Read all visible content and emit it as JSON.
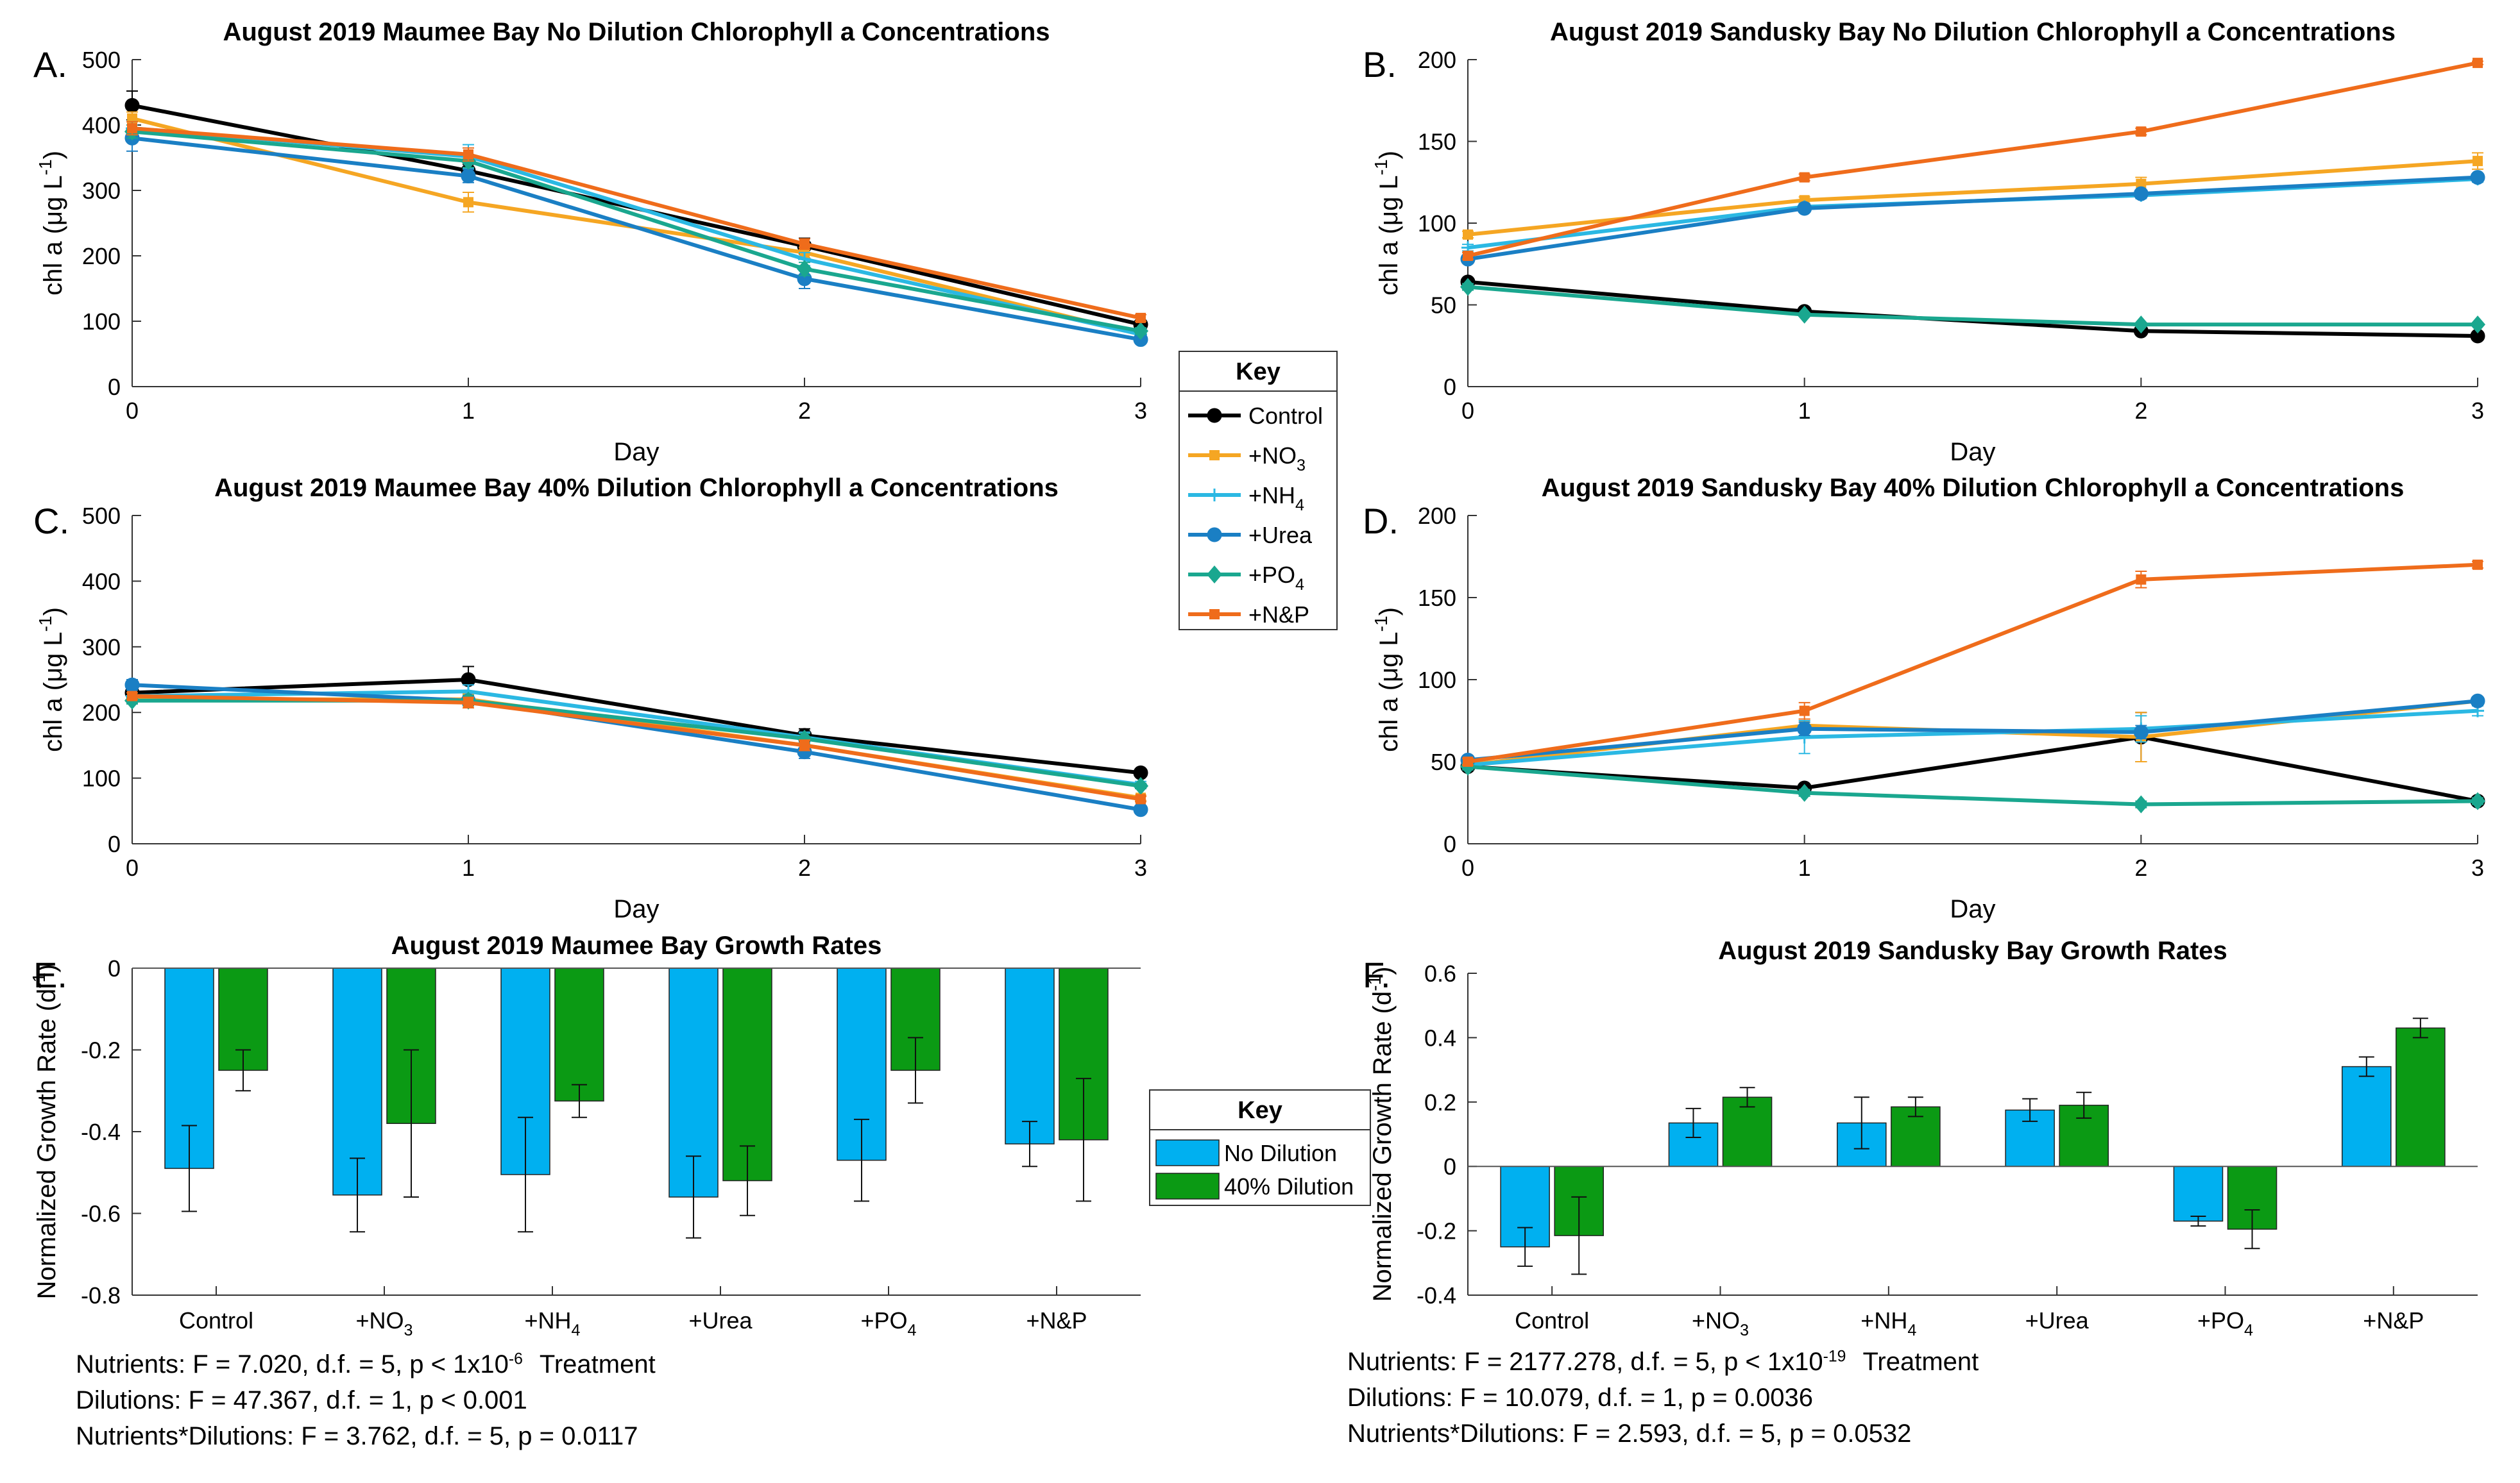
{
  "colors": {
    "Control": "#000000",
    "+NO3": "#f5a623",
    "+NH4": "#2bb8e3",
    "+Urea": "#1a7fc4",
    "+PO4": "#1aa78f",
    "+N&P": "#ef6c1b",
    "no_dilution": "#00b0f0",
    "dilution_40": "#0b9a14"
  },
  "line_key": {
    "title": "Key",
    "entries": [
      "Control",
      "+NO3",
      "+NH4",
      "+Urea",
      "+PO4",
      "+N&P"
    ],
    "markers": [
      "circle",
      "square",
      "plus",
      "circle",
      "diamond",
      "square"
    ]
  },
  "bar_key": {
    "title": "Key",
    "entries": [
      "No Dilution",
      "40% Dilution"
    ]
  },
  "chart_data": [
    {
      "type": "line",
      "panel": "A.",
      "title": "August 2019 Maumee Bay No Dilution Chlorophyll a Concentrations",
      "xlabel": "Day",
      "ylabel": "chl a (μg L⁻¹)",
      "xlim": [
        0,
        3
      ],
      "ylim": [
        0,
        500
      ],
      "xticks": [
        "0",
        "1",
        "2",
        "3"
      ],
      "yticks": [
        "0",
        "100",
        "200",
        "300",
        "400",
        "500"
      ],
      "x": [
        0,
        1,
        2,
        3
      ],
      "series": [
        {
          "name": "Control",
          "values": [
            430,
            330,
            215,
            95
          ],
          "errors": [
            22,
            10,
            12,
            6
          ]
        },
        {
          "name": "+NO3",
          "values": [
            410,
            282,
            205,
            80
          ],
          "errors": [
            10,
            15,
            8,
            5
          ]
        },
        {
          "name": "+NH4",
          "values": [
            395,
            352,
            195,
            80
          ],
          "errors": [
            10,
            18,
            10,
            5
          ]
        },
        {
          "name": "+Urea",
          "values": [
            380,
            322,
            165,
            72
          ],
          "errors": [
            20,
            10,
            15,
            5
          ]
        },
        {
          "name": "+PO4",
          "values": [
            390,
            345,
            180,
            85
          ],
          "errors": [
            10,
            10,
            10,
            5
          ]
        },
        {
          "name": "+N&P",
          "values": [
            395,
            355,
            218,
            105
          ],
          "errors": [
            10,
            10,
            8,
            5
          ]
        }
      ]
    },
    {
      "type": "line",
      "panel": "B.",
      "title": "August 2019 Sandusky Bay No Dilution Chlorophyll a Concentrations",
      "xlabel": "Day",
      "ylabel": "chl a (μg L⁻¹)",
      "xlim": [
        0,
        3
      ],
      "ylim": [
        0,
        200
      ],
      "xticks": [
        "0",
        "1",
        "2",
        "3"
      ],
      "yticks": [
        "0",
        "50",
        "100",
        "150",
        "200"
      ],
      "x": [
        0,
        1,
        2,
        3
      ],
      "series": [
        {
          "name": "Control",
          "values": [
            64,
            46,
            34,
            31
          ],
          "errors": [
            2,
            1,
            1,
            1
          ]
        },
        {
          "name": "+NO3",
          "values": [
            93,
            114,
            124,
            138
          ],
          "errors": [
            2,
            2,
            4,
            5
          ]
        },
        {
          "name": "+NH4",
          "values": [
            85,
            110,
            117,
            127
          ],
          "errors": [
            2,
            2,
            2,
            2
          ]
        },
        {
          "name": "+Urea",
          "values": [
            78,
            109,
            118,
            128
          ],
          "errors": [
            2,
            2,
            2,
            2
          ]
        },
        {
          "name": "+PO4",
          "values": [
            61,
            44,
            38,
            38
          ],
          "errors": [
            2,
            1,
            1,
            1
          ]
        },
        {
          "name": "+N&P",
          "values": [
            80,
            128,
            156,
            198
          ],
          "errors": [
            2,
            2,
            2,
            1
          ]
        }
      ]
    },
    {
      "type": "line",
      "panel": "C.",
      "title": "August 2019 Maumee Bay 40% Dilution Chlorophyll a Concentrations",
      "xlabel": "Day",
      "ylabel": "chl a (μg L⁻¹)",
      "xlim": [
        0,
        3
      ],
      "ylim": [
        0,
        500
      ],
      "xticks": [
        "0",
        "1",
        "2",
        "3"
      ],
      "yticks": [
        "0",
        "100",
        "200",
        "300",
        "400",
        "500"
      ],
      "x": [
        0,
        1,
        2,
        3
      ],
      "series": [
        {
          "name": "Control",
          "values": [
            230,
            250,
            165,
            108
          ],
          "errors": [
            8,
            20,
            10,
            5
          ]
        },
        {
          "name": "+NO3",
          "values": [
            220,
            220,
            150,
            70
          ],
          "errors": [
            5,
            8,
            8,
            4
          ]
        },
        {
          "name": "+NH4",
          "values": [
            225,
            232,
            162,
            90
          ],
          "errors": [
            5,
            10,
            8,
            5
          ]
        },
        {
          "name": "+Urea",
          "values": [
            242,
            218,
            140,
            52
          ],
          "errors": [
            8,
            8,
            10,
            4
          ]
        },
        {
          "name": "+PO4",
          "values": [
            218,
            218,
            160,
            88
          ],
          "errors": [
            5,
            8,
            8,
            4
          ]
        },
        {
          "name": "+N&P",
          "values": [
            225,
            215,
            150,
            68
          ],
          "errors": [
            5,
            8,
            8,
            4
          ]
        }
      ]
    },
    {
      "type": "line",
      "panel": "D.",
      "title": "August 2019 Sandusky Bay 40% Dilution Chlorophyll a Concentrations",
      "xlabel": "Day",
      "ylabel": "chl a (μg L⁻¹)",
      "xlim": [
        0,
        3
      ],
      "ylim": [
        0,
        200
      ],
      "xticks": [
        "0",
        "1",
        "2",
        "3"
      ],
      "yticks": [
        "0",
        "50",
        "100",
        "150",
        "200"
      ],
      "x": [
        0,
        1,
        2,
        3
      ],
      "series": [
        {
          "name": "Control",
          "values": [
            47,
            34,
            65,
            26
          ],
          "errors": [
            2,
            2,
            15,
            2
          ]
        },
        {
          "name": "+NO3",
          "values": [
            48,
            72,
            65,
            87
          ],
          "errors": [
            2,
            4,
            15,
            2
          ]
        },
        {
          "name": "+NH4",
          "values": [
            48,
            65,
            70,
            81
          ],
          "errors": [
            2,
            10,
            8,
            3
          ]
        },
        {
          "name": "+Urea",
          "values": [
            51,
            70,
            68,
            87
          ],
          "errors": [
            2,
            4,
            4,
            2
          ]
        },
        {
          "name": "+PO4",
          "values": [
            47,
            31,
            24,
            26
          ],
          "errors": [
            2,
            2,
            2,
            2
          ]
        },
        {
          "name": "+N&P",
          "values": [
            50,
            81,
            161,
            170
          ],
          "errors": [
            2,
            5,
            5,
            2
          ]
        }
      ]
    },
    {
      "type": "bar",
      "panel": "E.",
      "title": "August 2019 Maumee Bay Growth Rates",
      "xlabel": "",
      "ylabel": "Normalized Growth Rate (d⁻¹)",
      "ylim": [
        -0.8,
        0
      ],
      "yticks": [
        "-0.8",
        "-0.6",
        "-0.4",
        "-0.2",
        "0"
      ],
      "categories": [
        "Control",
        "+NO3",
        "+NH4",
        "+Urea",
        "+PO4",
        "+N&P"
      ],
      "series": [
        {
          "name": "No Dilution",
          "values": [
            -0.49,
            -0.555,
            -0.505,
            -0.56,
            -0.47,
            -0.43
          ],
          "errors": [
            0.105,
            0.09,
            0.14,
            0.1,
            0.1,
            0.055
          ]
        },
        {
          "name": "40% Dilution",
          "values": [
            -0.25,
            -0.38,
            -0.325,
            -0.52,
            -0.25,
            -0.42
          ],
          "errors": [
            0.05,
            0.18,
            0.04,
            0.085,
            0.08,
            0.15
          ]
        }
      ]
    },
    {
      "type": "bar",
      "panel": "F.",
      "title": "August 2019 Sandusky Bay Growth Rates",
      "xlabel": "",
      "ylabel": "Normalized Growth Rate (d⁻¹)",
      "ylim": [
        -0.4,
        0.6
      ],
      "yticks": [
        "-0.4",
        "-0.2",
        "0",
        "0.2",
        "0.4",
        "0.6"
      ],
      "categories": [
        "Control",
        "+NO3",
        "+NH4",
        "+Urea",
        "+PO4",
        "+N&P"
      ],
      "series": [
        {
          "name": "No Dilution",
          "values": [
            -0.25,
            0.135,
            0.135,
            0.175,
            -0.17,
            0.31
          ],
          "errors": [
            0.06,
            0.045,
            0.08,
            0.035,
            0.015,
            0.03
          ]
        },
        {
          "name": "40% Dilution",
          "values": [
            -0.215,
            0.215,
            0.185,
            0.19,
            -0.195,
            0.43
          ],
          "errors": [
            0.12,
            0.03,
            0.03,
            0.04,
            0.06,
            0.03
          ]
        }
      ]
    }
  ],
  "stats_E": {
    "nutrients_prefix": "Nutrients: F = 7.020, d.f. = 5, p < 1x10",
    "nutrients_exp": "-6",
    "treatment_label": "Treatment",
    "dilutions": "Dilutions: F = 47.367, d.f. = 1, p < 0.001",
    "interaction": "Nutrients*Dilutions: F = 3.762, d.f. = 5, p = 0.0117"
  },
  "stats_F": {
    "nutrients_prefix": "Nutrients: F = 2177.278, d.f. = 5, p < 1x10",
    "nutrients_exp": "-19",
    "treatment_label": "Treatment",
    "dilutions": "Dilutions: F = 10.079, d.f. = 1, p = 0.0036",
    "interaction": "Nutrients*Dilutions: F = 2.593, d.f. = 5, p = 0.0532"
  }
}
